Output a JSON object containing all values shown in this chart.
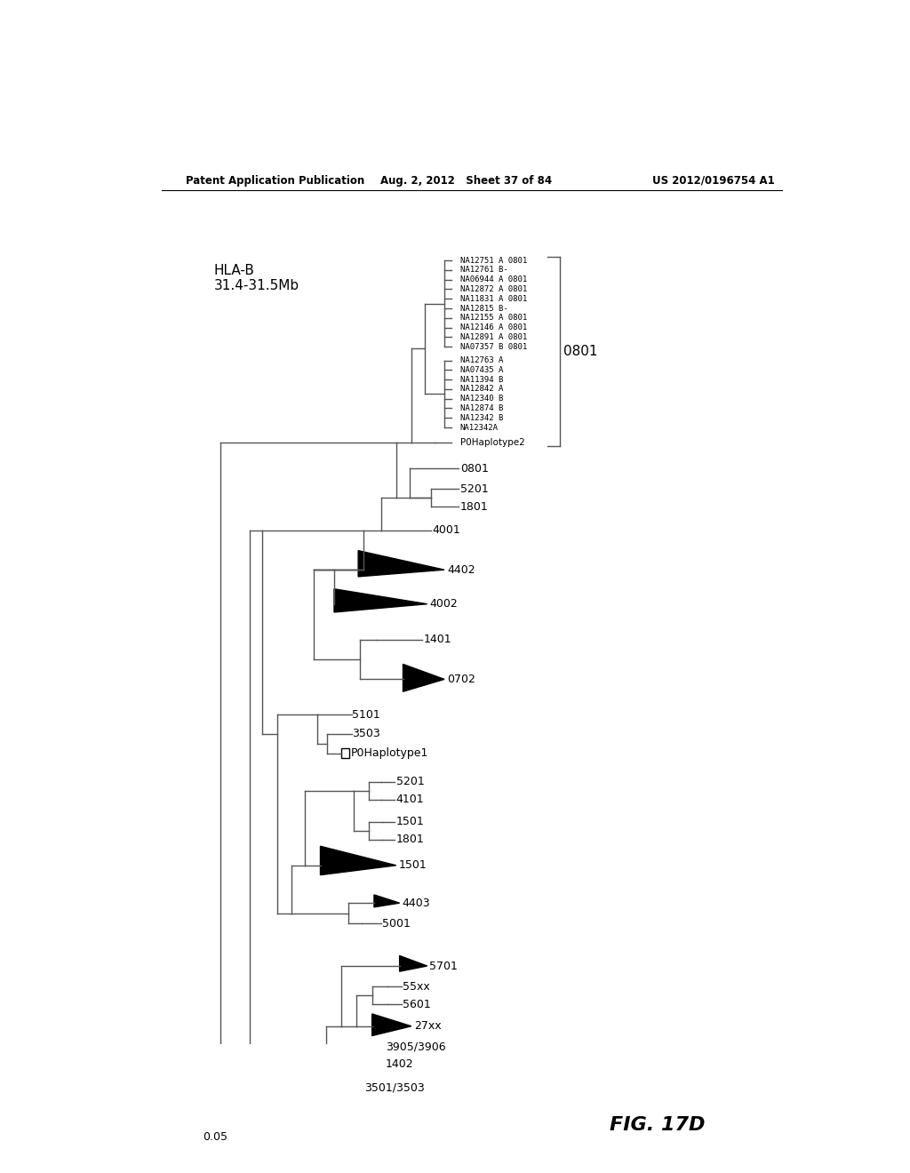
{
  "header_left": "Patent Application Publication",
  "header_mid": "Aug. 2, 2012   Sheet 37 of 84",
  "header_right": "US 2012/0196754 A1",
  "fig_label": "FIG. 17D",
  "scale_bar_label": "0.05",
  "background_color": "#ffffff",
  "text_color": "#000000",
  "tree_color": "#555555",
  "hla_label": "HLA-B",
  "hla_range": "31.4-31.5Mb",
  "leaf_texts_top": [
    "NA12751 A 0801",
    "NA12761 B-",
    "NA06944 A 0801",
    "NA12872 A 0801",
    "NA11831 A 0801",
    "NA12815 B-",
    "NA12155 A 0801",
    "NA12146 A 0801",
    "NA12891 A 0801",
    "NA07357 B 0801"
  ],
  "leaf_texts_mid": [
    "NA12763 A",
    "NA07435 A",
    "NA11394 B",
    "NA12842 A",
    "NA12340 B",
    "NA12874 B",
    "NA12342 B",
    "NA12342A"
  ]
}
